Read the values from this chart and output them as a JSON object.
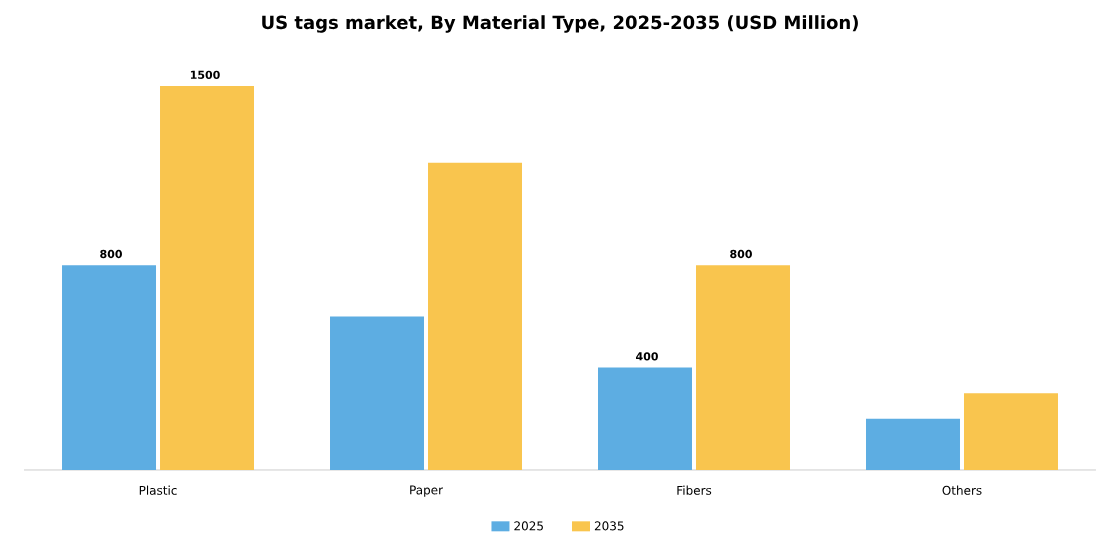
{
  "chart_data": {
    "type": "bar",
    "title": "US tags market, By Material Type, 2025-2035 (USD Million)",
    "categories": [
      "Plastic",
      "Paper",
      "Fibers",
      "Others"
    ],
    "series": [
      {
        "name": "2025",
        "color": "#5dade2",
        "values": [
          800,
          600,
          400,
          200
        ],
        "value_labels": [
          "800",
          null,
          "400",
          null
        ]
      },
      {
        "name": "2035",
        "color": "#f9c54e",
        "values": [
          1500,
          1200,
          800,
          300
        ],
        "value_labels": [
          "1500",
          null,
          "800",
          null
        ]
      }
    ],
    "legend": "bottom",
    "grid": false
  }
}
